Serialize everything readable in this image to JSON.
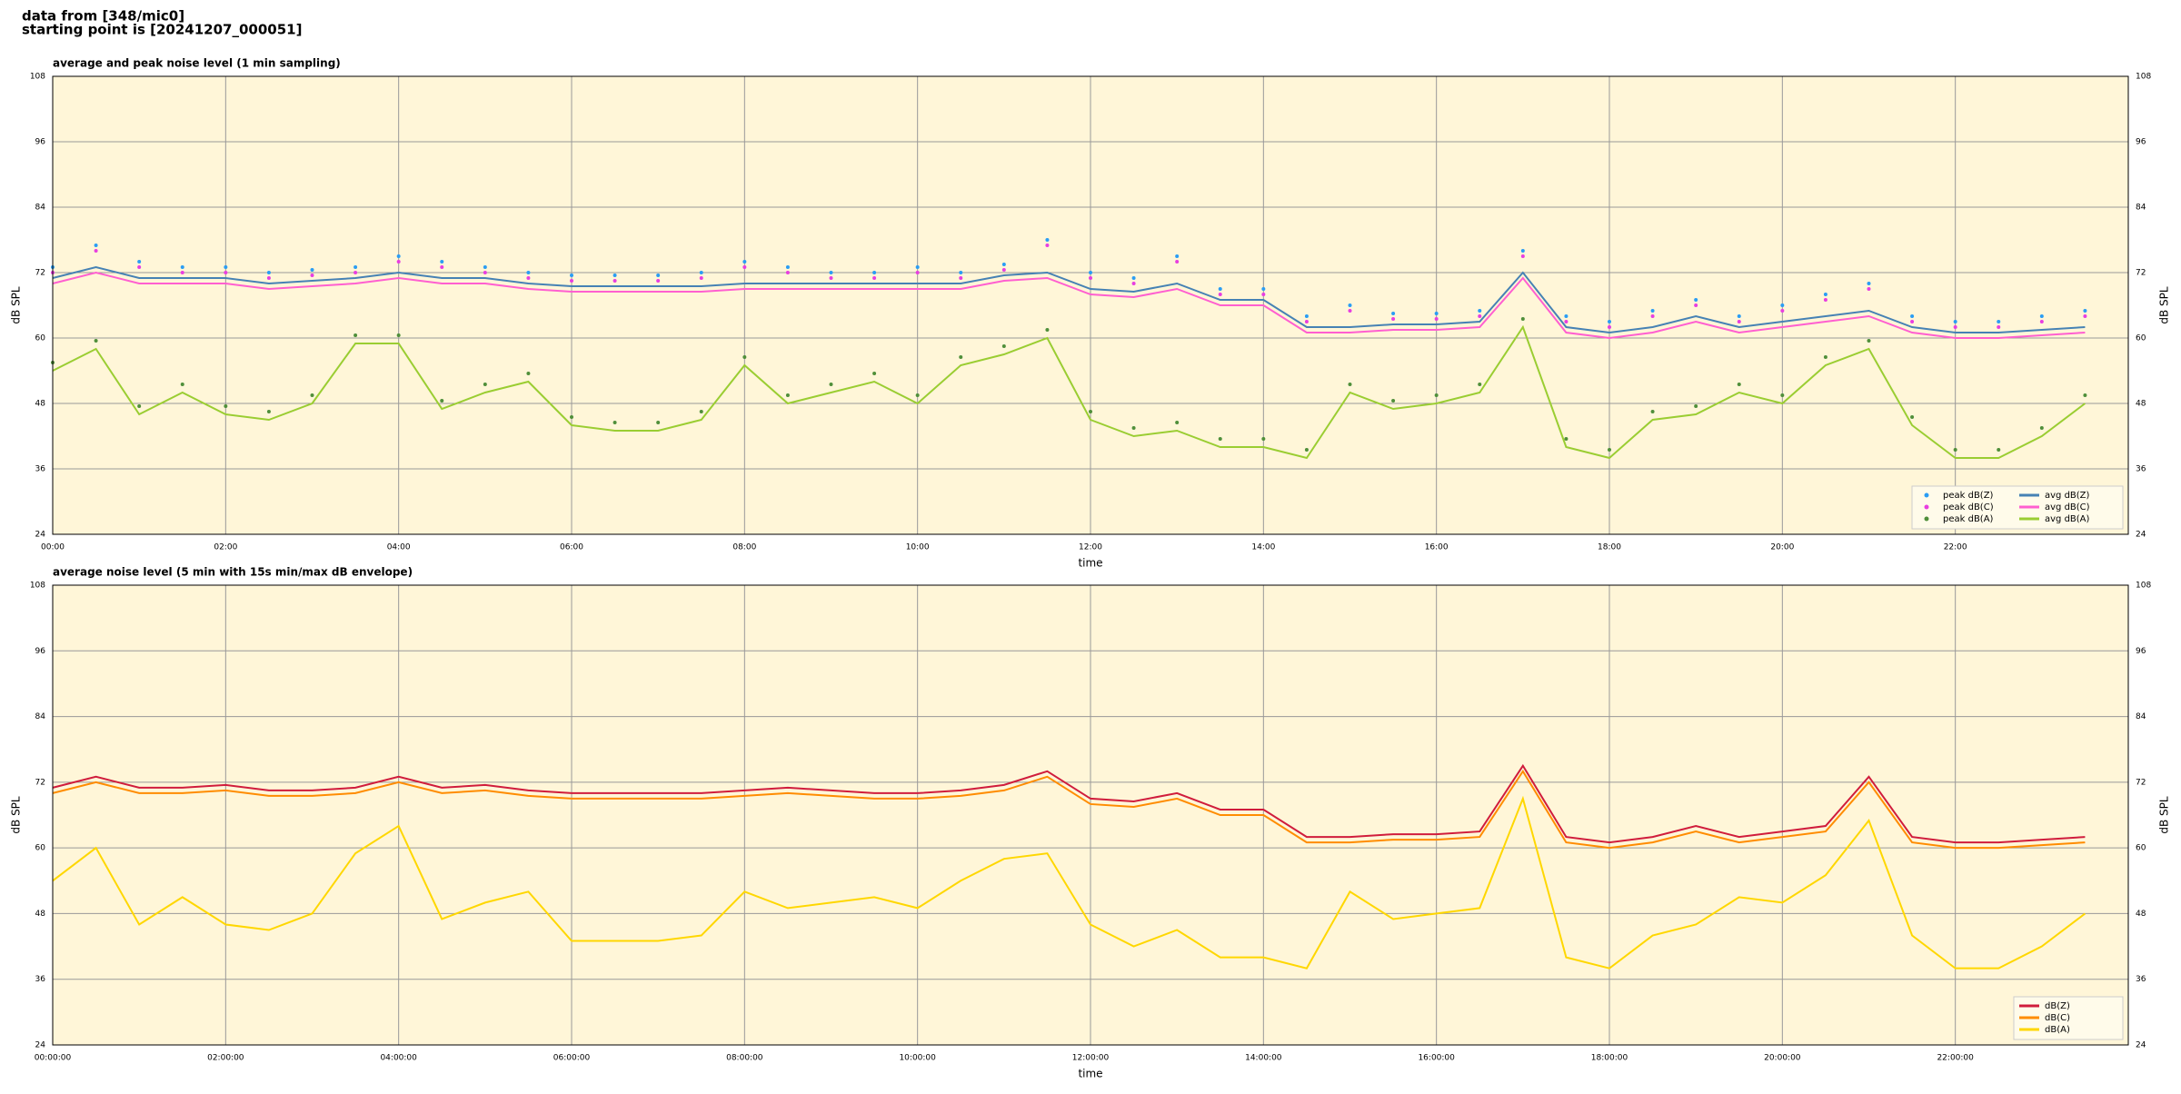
{
  "header": {
    "line1": "data from [348/mic0]",
    "line2": "starting point is [20241207_000051]"
  },
  "chart_data": [
    {
      "type": "line",
      "title": "average and peak noise level (1 min sampling)",
      "xlabel": "time",
      "ylabel": "dB SPL",
      "background": "#fff6d8",
      "grid": true,
      "legend": "lower right",
      "x": [
        0,
        30,
        60,
        90,
        120,
        150,
        180,
        210,
        240,
        270,
        300,
        330,
        360,
        390,
        420,
        450,
        480,
        510,
        540,
        570,
        600,
        630,
        660,
        690,
        720,
        750,
        780,
        810,
        840,
        870,
        900,
        930,
        960,
        990,
        1020,
        1050,
        1080,
        1110,
        1140,
        1170,
        1200,
        1230,
        1260,
        1290,
        1320,
        1350,
        1380,
        1410
      ],
      "xlim": [
        0,
        1440
      ],
      "xticks": [
        {
          "value": 0,
          "label": "00:00"
        },
        {
          "value": 120,
          "label": "02:00"
        },
        {
          "value": 240,
          "label": "04:00"
        },
        {
          "value": 360,
          "label": "06:00"
        },
        {
          "value": 480,
          "label": "08:00"
        },
        {
          "value": 600,
          "label": "10:00"
        },
        {
          "value": 720,
          "label": "12:00"
        },
        {
          "value": 840,
          "label": "14:00"
        },
        {
          "value": 960,
          "label": "16:00"
        },
        {
          "value": 1080,
          "label": "18:00"
        },
        {
          "value": 1200,
          "label": "20:00"
        },
        {
          "value": 1320,
          "label": "22:00"
        }
      ],
      "ylim": [
        24,
        108
      ],
      "yticks": [
        24,
        36,
        48,
        60,
        72,
        84,
        96,
        108
      ],
      "series": [
        {
          "name": "peak dB(Z)",
          "kind": "scatter",
          "color": "#2a9df4",
          "values": [
            73,
            77,
            74,
            73,
            73,
            72,
            72.5,
            73,
            75,
            74,
            73,
            72,
            71.5,
            71.5,
            71.5,
            72,
            74,
            73,
            72,
            72,
            73,
            72,
            73.5,
            78,
            72,
            71,
            75,
            69,
            69,
            64,
            66,
            64.5,
            64.5,
            65,
            76,
            64,
            63,
            65,
            67,
            64,
            66,
            68,
            70,
            64,
            63,
            63,
            64,
            65
          ]
        },
        {
          "name": "peak dB(C)",
          "kind": "scatter",
          "color": "#e83ee0",
          "values": [
            72,
            76,
            73,
            72,
            72,
            71,
            71.5,
            72,
            74,
            73,
            72,
            71,
            70.5,
            70.5,
            70.5,
            71,
            73,
            72,
            71,
            71,
            72,
            71,
            72.5,
            77,
            71,
            70,
            74,
            68,
            68,
            63,
            65,
            63.5,
            63.5,
            64,
            75,
            63,
            62,
            64,
            66,
            63,
            65,
            67,
            69,
            63,
            62,
            62,
            63,
            64
          ]
        },
        {
          "name": "peak dB(A)",
          "kind": "scatter",
          "color": "#4f8f3a",
          "values": [
            55.5,
            59.5,
            47.5,
            51.5,
            47.5,
            46.5,
            49.5,
            60.5,
            60.5,
            48.5,
            51.5,
            53.5,
            45.5,
            44.5,
            44.5,
            46.5,
            56.5,
            49.5,
            51.5,
            53.5,
            49.5,
            56.5,
            58.5,
            61.5,
            46.5,
            43.5,
            44.5,
            41.5,
            41.5,
            39.5,
            51.5,
            48.5,
            49.5,
            51.5,
            63.5,
            41.5,
            39.5,
            46.5,
            47.5,
            51.5,
            49.5,
            56.5,
            59.5,
            45.5,
            39.5,
            39.5,
            43.5,
            49.5
          ]
        },
        {
          "name": "avg dB(Z)",
          "kind": "line",
          "color": "#4682b4",
          "values": [
            71,
            73,
            71,
            71,
            71,
            70,
            70.5,
            71,
            72,
            71,
            71,
            70,
            69.5,
            69.5,
            69.5,
            69.5,
            70,
            70,
            70,
            70,
            70,
            70,
            71.5,
            72,
            69,
            68.5,
            70,
            67,
            67,
            62,
            62,
            62.5,
            62.5,
            63,
            72,
            62,
            61,
            62,
            64,
            62,
            63,
            64,
            65,
            62,
            61,
            61,
            61.5,
            62
          ]
        },
        {
          "name": "avg dB(C)",
          "kind": "line",
          "color": "#ff5fd0",
          "values": [
            70,
            72,
            70,
            70,
            70,
            69,
            69.5,
            70,
            71,
            70,
            70,
            69,
            68.5,
            68.5,
            68.5,
            68.5,
            69,
            69,
            69,
            69,
            69,
            69,
            70.5,
            71,
            68,
            67.5,
            69,
            66,
            66,
            61,
            61,
            61.5,
            61.5,
            62,
            71,
            61,
            60,
            61,
            63,
            61,
            62,
            63,
            64,
            61,
            60,
            60,
            60.5,
            61
          ]
        },
        {
          "name": "avg dB(A)",
          "kind": "line",
          "color": "#9acd32",
          "values": [
            54,
            58,
            46,
            50,
            46,
            45,
            48,
            59,
            59,
            47,
            50,
            52,
            44,
            43,
            43,
            45,
            55,
            48,
            50,
            52,
            48,
            55,
            57,
            60,
            45,
            42,
            43,
            40,
            40,
            38,
            50,
            47,
            48,
            50,
            62,
            40,
            38,
            45,
            46,
            50,
            48,
            55,
            58,
            44,
            38,
            38,
            42,
            48
          ]
        }
      ]
    },
    {
      "type": "line",
      "title": "average noise level (5 min with 15s min/max dB envelope)",
      "xlabel": "time",
      "ylabel": "dB SPL",
      "background": "#fff6d8",
      "grid": true,
      "legend": "lower right",
      "x": [
        0,
        30,
        60,
        90,
        120,
        150,
        180,
        210,
        240,
        270,
        300,
        330,
        360,
        390,
        420,
        450,
        480,
        510,
        540,
        570,
        600,
        630,
        660,
        690,
        720,
        750,
        780,
        810,
        840,
        870,
        900,
        930,
        960,
        990,
        1020,
        1050,
        1080,
        1110,
        1140,
        1170,
        1200,
        1230,
        1260,
        1290,
        1320,
        1350,
        1380,
        1410
      ],
      "xlim": [
        0,
        1440
      ],
      "xticks": [
        {
          "value": 0,
          "label": "00:00:00"
        },
        {
          "value": 120,
          "label": "02:00:00"
        },
        {
          "value": 240,
          "label": "04:00:00"
        },
        {
          "value": 360,
          "label": "06:00:00"
        },
        {
          "value": 480,
          "label": "08:00:00"
        },
        {
          "value": 600,
          "label": "10:00:00"
        },
        {
          "value": 720,
          "label": "12:00:00"
        },
        {
          "value": 840,
          "label": "14:00:00"
        },
        {
          "value": 960,
          "label": "16:00:00"
        },
        {
          "value": 1080,
          "label": "18:00:00"
        },
        {
          "value": 1200,
          "label": "20:00:00"
        },
        {
          "value": 1320,
          "label": "22:00:00"
        }
      ],
      "ylim": [
        24,
        108
      ],
      "yticks": [
        24,
        36,
        48,
        60,
        72,
        84,
        96,
        108
      ],
      "series": [
        {
          "name": "dB(Z)",
          "kind": "line",
          "color": "#d01c3c",
          "values": [
            71,
            73,
            71,
            71,
            71.5,
            70.5,
            70.5,
            71,
            73,
            71,
            71.5,
            70.5,
            70,
            70,
            70,
            70,
            70.5,
            71,
            70.5,
            70,
            70,
            70.5,
            71.5,
            74,
            69,
            68.5,
            70,
            67,
            67,
            62,
            62,
            62.5,
            62.5,
            63,
            75,
            62,
            61,
            62,
            64,
            62,
            63,
            64,
            73,
            62,
            61,
            61,
            61.5,
            62
          ]
        },
        {
          "name": "dB(C)",
          "kind": "line",
          "color": "#ff8c00",
          "values": [
            70,
            72,
            70,
            70,
            70.5,
            69.5,
            69.5,
            70,
            72,
            70,
            70.5,
            69.5,
            69,
            69,
            69,
            69,
            69.5,
            70,
            69.5,
            69,
            69,
            69.5,
            70.5,
            73,
            68,
            67.5,
            69,
            66,
            66,
            61,
            61,
            61.5,
            61.5,
            62,
            74,
            61,
            60,
            61,
            63,
            61,
            62,
            63,
            72,
            61,
            60,
            60,
            60.5,
            61
          ]
        },
        {
          "name": "dB(A)",
          "kind": "line",
          "color": "#ffd700",
          "values": [
            54,
            60,
            46,
            51,
            46,
            45,
            48,
            59,
            64,
            47,
            50,
            52,
            43,
            43,
            43,
            44,
            52,
            49,
            50,
            51,
            49,
            54,
            58,
            59,
            46,
            42,
            45,
            40,
            40,
            38,
            52,
            47,
            48,
            49,
            69,
            40,
            38,
            44,
            46,
            51,
            50,
            55,
            65,
            44,
            38,
            38,
            42,
            48
          ]
        }
      ]
    }
  ]
}
